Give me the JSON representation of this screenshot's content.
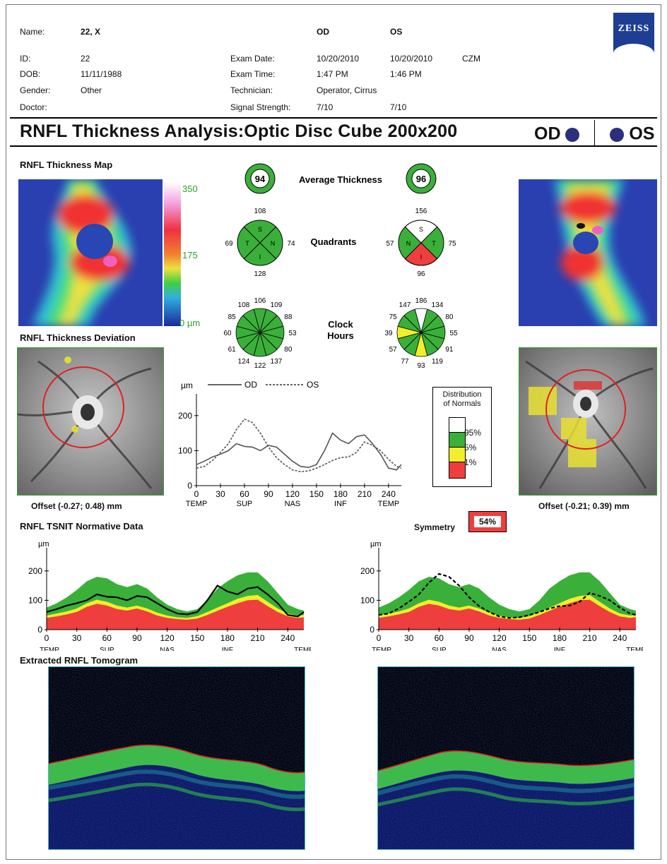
{
  "header": {
    "name_label": "Name:",
    "name": "22, X",
    "id_label": "ID:",
    "id": "22",
    "dob_label": "DOB:",
    "dob": "11/11/1988",
    "gender_label": "Gender:",
    "gender": "Other",
    "doctor_label": "Doctor:",
    "od": "OD",
    "os": "OS",
    "exam_date_label": "Exam Date:",
    "exam_date_od": "10/20/2010",
    "exam_date_os": "10/20/2010",
    "operator": "CZM",
    "exam_time_label": "Exam Time:",
    "exam_time_od": "1:47 PM",
    "exam_time_os": "1:46 PM",
    "technician_label": "Technician:",
    "technician": "Operator, Cirrus",
    "signal_label": "Signal Strength:",
    "signal_od": "7/10",
    "signal_os": "7/10",
    "logo": "ZEISS"
  },
  "title": "RNFL Thickness Analysis:Optic Disc Cube 200x200",
  "title_od": "OD",
  "title_os": "OS",
  "sections": {
    "map": "RNFL Thickness Map",
    "deviation": "RNFL Thickness Deviation",
    "tsnit": "RNFL TSNIT Normative Data",
    "tomogram": "Extracted RNFL Tomogram"
  },
  "scale": {
    "max": "350",
    "mid": "175",
    "min": "0 µm"
  },
  "center": {
    "avg_label": "Average Thickness",
    "avg_od": "94",
    "avg_os": "96",
    "quad_label": "Quadrants",
    "quad_od": {
      "S": "108",
      "T": "69",
      "N": "74",
      "I": "128"
    },
    "quad_os": {
      "S": "156",
      "N": "57",
      "T": "75",
      "I": "96"
    },
    "clock_label_1": "Clock",
    "clock_label_2": "Hours",
    "clock_od": [
      "106",
      "109",
      "88",
      "53",
      "80",
      "137",
      "122",
      "124",
      "61",
      "60",
      "85",
      "108"
    ],
    "clock_os": [
      "186",
      "134",
      "80",
      "55",
      "91",
      "119",
      "93",
      "77",
      "57",
      "39",
      "75",
      "147"
    ]
  },
  "offset_od": "Offset (-0.27; 0.48) mm",
  "offset_os": "Offset (-0.21; 0.39) mm",
  "legend": {
    "title_1": "Distribution",
    "title_2": "of Normals",
    "p95": "95%",
    "p5": "5%",
    "p1": "1%"
  },
  "symmetry": {
    "label": "Symmetry",
    "value": "54%"
  },
  "colors": {
    "green": "#3ab03a",
    "yellow": "#f2ef2a",
    "red": "#ef3e3e",
    "white": "#ffffff",
    "signal": "#2b2f7d"
  },
  "chart_data": [
    {
      "type": "line",
      "title": "",
      "ylabel": "µm",
      "legend": [
        "OD",
        "OS"
      ],
      "xlim": [
        0,
        256
      ],
      "ylim": [
        0,
        250
      ],
      "x_ticks": [
        "0",
        "30",
        "60",
        "90",
        "120",
        "150",
        "180",
        "210",
        "240"
      ],
      "y_ticks": [
        "0",
        "100",
        "200"
      ],
      "region_labels": [
        "TEMP",
        "SUP",
        "NAS",
        "INF",
        "TEMP"
      ],
      "x": [
        0,
        10,
        20,
        30,
        40,
        50,
        60,
        70,
        80,
        90,
        100,
        110,
        120,
        130,
        140,
        150,
        160,
        170,
        180,
        190,
        200,
        210,
        220,
        230,
        240,
        250,
        256
      ],
      "series": [
        {
          "name": "OD",
          "values": [
            60,
            70,
            82,
            90,
            100,
            120,
            112,
            110,
            100,
            115,
            110,
            90,
            70,
            55,
            52,
            60,
            100,
            150,
            130,
            120,
            140,
            145,
            120,
            90,
            50,
            45,
            60
          ]
        },
        {
          "name": "OS",
          "values": [
            50,
            55,
            72,
            95,
            120,
            160,
            190,
            180,
            150,
            110,
            80,
            60,
            45,
            40,
            42,
            50,
            60,
            72,
            80,
            82,
            95,
            125,
            115,
            100,
            75,
            55,
            50
          ]
        }
      ]
    },
    {
      "type": "area",
      "title": "",
      "ylabel": "µm",
      "xlim": [
        0,
        256
      ],
      "ylim": [
        0,
        250
      ],
      "x_ticks": [
        "0",
        "30",
        "60",
        "90",
        "120",
        "150",
        "180",
        "210",
        "240"
      ],
      "y_ticks": [
        "0",
        "100",
        "200"
      ],
      "region_labels": [
        "TEMP",
        "SUP",
        "NAS",
        "INF",
        "TEMP"
      ],
      "x": [
        0,
        10,
        20,
        30,
        40,
        50,
        60,
        70,
        80,
        90,
        100,
        110,
        120,
        130,
        140,
        150,
        160,
        170,
        180,
        190,
        200,
        210,
        220,
        230,
        240,
        250,
        256
      ],
      "bands": {
        "p1": [
          40,
          45,
          52,
          60,
          78,
          88,
          82,
          70,
          65,
          72,
          62,
          48,
          40,
          36,
          34,
          38,
          50,
          64,
          78,
          90,
          100,
          102,
          80,
          60,
          45,
          40,
          42
        ],
        "p5": [
          48,
          55,
          62,
          72,
          90,
          102,
          95,
          82,
          75,
          82,
          72,
          58,
          48,
          42,
          40,
          46,
          60,
          75,
          90,
          105,
          115,
          118,
          95,
          72,
          55,
          48,
          50
        ],
        "p95": [
          75,
          90,
          110,
          135,
          165,
          180,
          175,
          155,
          145,
          155,
          140,
          110,
          85,
          70,
          62,
          70,
          100,
          140,
          165,
          185,
          195,
          195,
          165,
          125,
          85,
          70,
          65
        ]
      },
      "series": [
        {
          "name": "OD",
          "values": [
            60,
            70,
            82,
            90,
            100,
            120,
            112,
            110,
            100,
            115,
            110,
            90,
            70,
            55,
            52,
            60,
            100,
            150,
            130,
            120,
            140,
            145,
            120,
            90,
            50,
            45,
            60
          ]
        }
      ]
    },
    {
      "type": "area",
      "title": "",
      "ylabel": "µm",
      "xlim": [
        0,
        256
      ],
      "ylim": [
        0,
        250
      ],
      "x_ticks": [
        "0",
        "30",
        "60",
        "90",
        "120",
        "150",
        "180",
        "210",
        "240"
      ],
      "y_ticks": [
        "0",
        "100",
        "200"
      ],
      "region_labels": [
        "TEMP",
        "SUP",
        "NAS",
        "INF",
        "TEMP"
      ],
      "x": [
        0,
        10,
        20,
        30,
        40,
        50,
        60,
        70,
        80,
        90,
        100,
        110,
        120,
        130,
        140,
        150,
        160,
        170,
        180,
        190,
        200,
        210,
        220,
        230,
        240,
        250,
        256
      ],
      "bands": {
        "p1": [
          40,
          45,
          52,
          60,
          78,
          88,
          82,
          70,
          65,
          72,
          62,
          48,
          40,
          36,
          34,
          38,
          50,
          64,
          78,
          90,
          100,
          102,
          80,
          60,
          45,
          40,
          42
        ],
        "p5": [
          48,
          55,
          62,
          72,
          90,
          102,
          95,
          82,
          75,
          82,
          72,
          58,
          48,
          42,
          40,
          46,
          60,
          75,
          90,
          105,
          115,
          118,
          95,
          72,
          55,
          48,
          50
        ],
        "p95": [
          75,
          90,
          110,
          135,
          165,
          180,
          175,
          155,
          145,
          155,
          140,
          110,
          85,
          70,
          62,
          70,
          100,
          140,
          165,
          185,
          195,
          195,
          165,
          125,
          85,
          70,
          65
        ]
      },
      "series": [
        {
          "name": "OS",
          "values": [
            50,
            55,
            72,
            95,
            120,
            160,
            190,
            180,
            150,
            110,
            80,
            60,
            45,
            40,
            42,
            50,
            60,
            72,
            80,
            82,
            95,
            125,
            115,
            100,
            75,
            55,
            50
          ]
        }
      ]
    }
  ]
}
